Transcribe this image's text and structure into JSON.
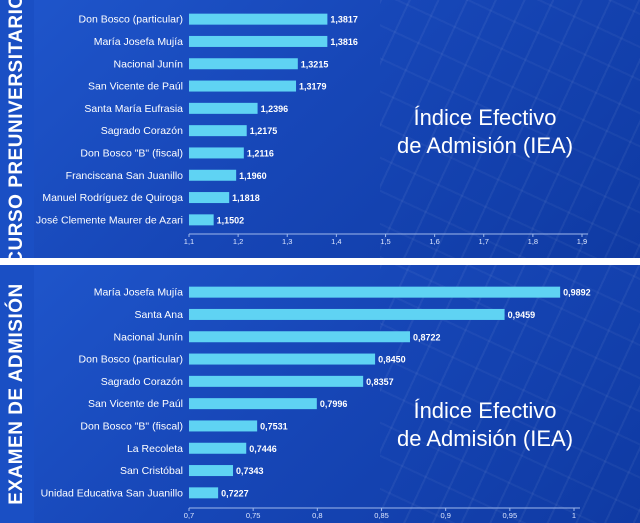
{
  "chart_data": [
    {
      "type": "bar",
      "orientation": "horizontal",
      "title": "Índice Efectivo de Admisión (IEA)",
      "side_label": "CURSO PREUNIVERSITARIO",
      "categories": [
        "Don Bosco (particular)",
        "María Josefa Mujía",
        "Nacional Junín",
        "San Vicente de Paúl",
        "Santa María Eufrasia",
        "Sagrado Corazón",
        "Don Bosco \"B\" (fiscal)",
        "Franciscana San Juanillo",
        "Manuel Rodríguez de Quiroga",
        "José Clemente Maurer de Azari"
      ],
      "values": [
        1.3817,
        1.3816,
        1.3215,
        1.3179,
        1.2396,
        1.2175,
        1.2116,
        1.196,
        1.1818,
        1.1502
      ],
      "value_labels": [
        "1,3817",
        "1,3816",
        "1,3215",
        "1,3179",
        "1,2396",
        "1,2175",
        "1,2116",
        "1,1960",
        "1,1818",
        "1,1502"
      ],
      "xlim": [
        1.1,
        1.9
      ],
      "ticks": [
        1.1,
        1.2,
        1.3,
        1.4,
        1.5,
        1.6,
        1.7,
        1.8,
        1.9
      ],
      "tick_labels": [
        "1,1",
        "1,2",
        "1,3",
        "1,4",
        "1,5",
        "1,6",
        "1,7",
        "1,8",
        "1,9"
      ],
      "bar_color": "#5fd3f3",
      "grid": false
    },
    {
      "type": "bar",
      "orientation": "horizontal",
      "title": "Índice Efectivo de Admisión (IEA)",
      "side_label": "EXAMEN DE ADMISIÓN",
      "categories": [
        "María Josefa Mujía",
        "Santa Ana",
        "Nacional Junín",
        "Don Bosco (particular)",
        "Sagrado Corazón",
        "San Vicente de Paúl",
        "Don Bosco \"B\" (fiscal)",
        "La Recoleta",
        "San Cristóbal",
        "Unidad Educativa San Juanillo"
      ],
      "values": [
        0.9892,
        0.9459,
        0.8722,
        0.845,
        0.8357,
        0.7996,
        0.7531,
        0.7446,
        0.7343,
        0.7227
      ],
      "value_labels": [
        "0,9892",
        "0,9459",
        "0,8722",
        "0,8450",
        "0,8357",
        "0,7996",
        "0,7531",
        "0,7446",
        "0,7343",
        "0,7227"
      ],
      "xlim": [
        0.7,
        1.0
      ],
      "ticks": [
        0.7,
        0.75,
        0.8,
        0.85,
        0.9,
        0.95,
        1.0
      ],
      "tick_labels": [
        "0,7",
        "0,75",
        "0,8",
        "0,85",
        "0,9",
        "0,95",
        "1"
      ],
      "bar_color": "#5fd3f3",
      "grid": false
    }
  ]
}
